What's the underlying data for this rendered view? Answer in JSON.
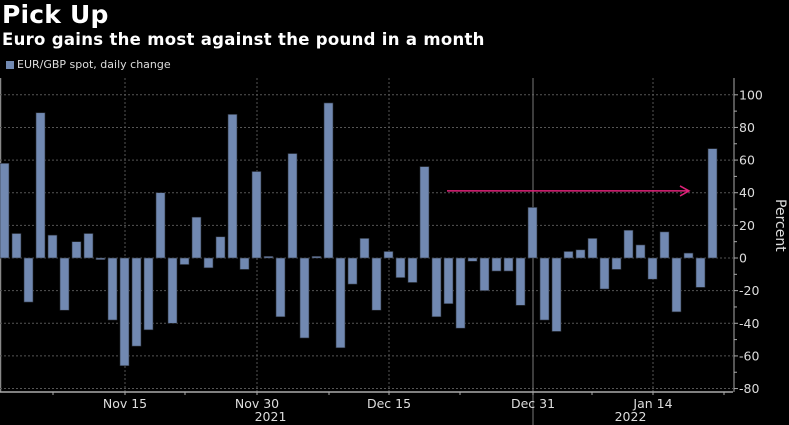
{
  "header": {
    "title": "Pick Up",
    "subtitle": "Euro gains the most against the pound in a month"
  },
  "colors": {
    "bar": "#7189b2",
    "arrow": "#e0227a",
    "grid": "#555555",
    "axis": "#aaaaaa"
  },
  "chart_data": {
    "type": "bar",
    "title": "Pick Up",
    "subtitle": "Euro gains the most against the pound in a month",
    "legend": [
      "EUR/GBP spot, daily change"
    ],
    "legend_position": "top-left",
    "xlabel": "",
    "ylabel": "Percent",
    "ylim": [
      -85,
      105
    ],
    "yticks": [
      100,
      80,
      60,
      40,
      20,
      0,
      -20,
      -40,
      -60,
      -80
    ],
    "ytick_labels": [
      "100",
      "80",
      "60",
      "40",
      "20",
      "0",
      "-20",
      "-40",
      "-60",
      "-80"
    ],
    "grid": true,
    "xticks": [
      {
        "label": "Nov 15",
        "index": 10
      },
      {
        "label": "Nov 30",
        "index": 21
      },
      {
        "label": "Dec 15",
        "index": 32
      },
      {
        "label": "Dec 31",
        "index": 44
      },
      {
        "label": "Jan 14",
        "index": 54
      }
    ],
    "year_labels": [
      {
        "label": "2021",
        "index": 22
      },
      {
        "label": "2022",
        "index": 52
      }
    ],
    "series": [
      {
        "name": "EUR/GBP spot, daily change",
        "values": [
          58,
          15,
          -27,
          89,
          14,
          -32,
          10,
          15,
          -1,
          -38,
          -66,
          -54,
          -44,
          40,
          -40,
          -4,
          25,
          -6,
          13,
          88,
          -7,
          53,
          1,
          -36,
          64,
          -49,
          1,
          95,
          -55,
          -16,
          12,
          -32,
          4,
          -12,
          -15,
          56,
          -36,
          -28,
          -43,
          -2,
          -20,
          -8,
          -8,
          -29,
          31,
          -38,
          -45,
          4,
          5,
          12,
          -19,
          -7,
          17,
          8,
          -13,
          16,
          -33,
          3,
          -18,
          67
        ]
      }
    ],
    "annotations": [
      {
        "type": "arrow",
        "y_value": 46,
        "from_index": 37,
        "to_index": 57
      }
    ]
  }
}
